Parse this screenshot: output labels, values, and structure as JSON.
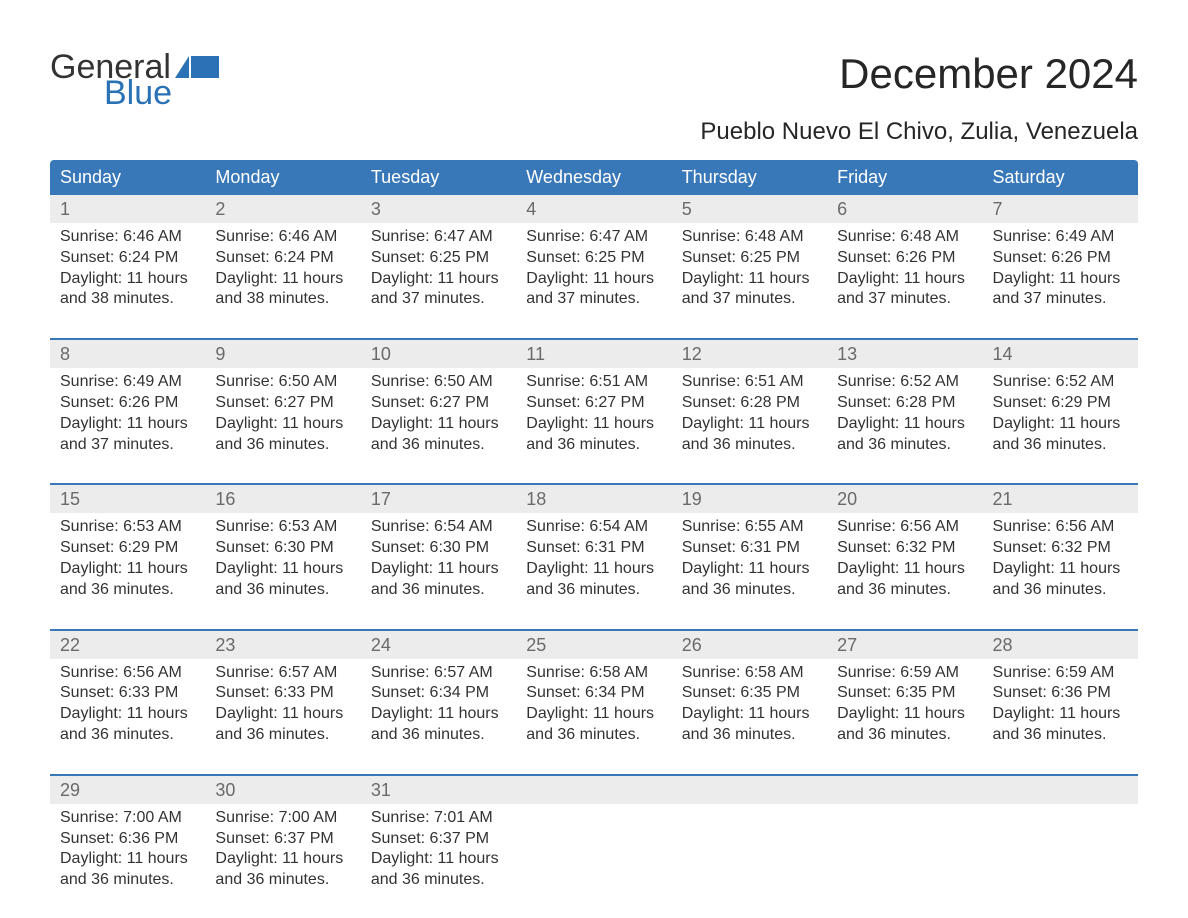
{
  "logo": {
    "text_general": "General",
    "text_blue": "Blue",
    "flag_color": "#2a72b5"
  },
  "title": "December 2024",
  "subtitle": "Pueblo Nuevo El Chivo, Zulia, Venezuela",
  "colors": {
    "header_bg": "#3878b8",
    "header_text": "#ffffff",
    "daynum_bg": "#ececec",
    "daynum_text": "#6a6a6a",
    "body_text": "#333333",
    "week_border": "#3878b8",
    "page_bg": "#ffffff"
  },
  "typography": {
    "title_fontsize": 42,
    "subtitle_fontsize": 24,
    "weekday_fontsize": 18,
    "daynum_fontsize": 18,
    "content_fontsize": 16
  },
  "weekdays": [
    "Sunday",
    "Monday",
    "Tuesday",
    "Wednesday",
    "Thursday",
    "Friday",
    "Saturday"
  ],
  "weeks": [
    {
      "days": [
        {
          "num": "1",
          "sunrise": "Sunrise: 6:46 AM",
          "sunset": "Sunset: 6:24 PM",
          "daylight1": "Daylight: 11 hours",
          "daylight2": "and 38 minutes."
        },
        {
          "num": "2",
          "sunrise": "Sunrise: 6:46 AM",
          "sunset": "Sunset: 6:24 PM",
          "daylight1": "Daylight: 11 hours",
          "daylight2": "and 38 minutes."
        },
        {
          "num": "3",
          "sunrise": "Sunrise: 6:47 AM",
          "sunset": "Sunset: 6:25 PM",
          "daylight1": "Daylight: 11 hours",
          "daylight2": "and 37 minutes."
        },
        {
          "num": "4",
          "sunrise": "Sunrise: 6:47 AM",
          "sunset": "Sunset: 6:25 PM",
          "daylight1": "Daylight: 11 hours",
          "daylight2": "and 37 minutes."
        },
        {
          "num": "5",
          "sunrise": "Sunrise: 6:48 AM",
          "sunset": "Sunset: 6:25 PM",
          "daylight1": "Daylight: 11 hours",
          "daylight2": "and 37 minutes."
        },
        {
          "num": "6",
          "sunrise": "Sunrise: 6:48 AM",
          "sunset": "Sunset: 6:26 PM",
          "daylight1": "Daylight: 11 hours",
          "daylight2": "and 37 minutes."
        },
        {
          "num": "7",
          "sunrise": "Sunrise: 6:49 AM",
          "sunset": "Sunset: 6:26 PM",
          "daylight1": "Daylight: 11 hours",
          "daylight2": "and 37 minutes."
        }
      ]
    },
    {
      "days": [
        {
          "num": "8",
          "sunrise": "Sunrise: 6:49 AM",
          "sunset": "Sunset: 6:26 PM",
          "daylight1": "Daylight: 11 hours",
          "daylight2": "and 37 minutes."
        },
        {
          "num": "9",
          "sunrise": "Sunrise: 6:50 AM",
          "sunset": "Sunset: 6:27 PM",
          "daylight1": "Daylight: 11 hours",
          "daylight2": "and 36 minutes."
        },
        {
          "num": "10",
          "sunrise": "Sunrise: 6:50 AM",
          "sunset": "Sunset: 6:27 PM",
          "daylight1": "Daylight: 11 hours",
          "daylight2": "and 36 minutes."
        },
        {
          "num": "11",
          "sunrise": "Sunrise: 6:51 AM",
          "sunset": "Sunset: 6:27 PM",
          "daylight1": "Daylight: 11 hours",
          "daylight2": "and 36 minutes."
        },
        {
          "num": "12",
          "sunrise": "Sunrise: 6:51 AM",
          "sunset": "Sunset: 6:28 PM",
          "daylight1": "Daylight: 11 hours",
          "daylight2": "and 36 minutes."
        },
        {
          "num": "13",
          "sunrise": "Sunrise: 6:52 AM",
          "sunset": "Sunset: 6:28 PM",
          "daylight1": "Daylight: 11 hours",
          "daylight2": "and 36 minutes."
        },
        {
          "num": "14",
          "sunrise": "Sunrise: 6:52 AM",
          "sunset": "Sunset: 6:29 PM",
          "daylight1": "Daylight: 11 hours",
          "daylight2": "and 36 minutes."
        }
      ]
    },
    {
      "days": [
        {
          "num": "15",
          "sunrise": "Sunrise: 6:53 AM",
          "sunset": "Sunset: 6:29 PM",
          "daylight1": "Daylight: 11 hours",
          "daylight2": "and 36 minutes."
        },
        {
          "num": "16",
          "sunrise": "Sunrise: 6:53 AM",
          "sunset": "Sunset: 6:30 PM",
          "daylight1": "Daylight: 11 hours",
          "daylight2": "and 36 minutes."
        },
        {
          "num": "17",
          "sunrise": "Sunrise: 6:54 AM",
          "sunset": "Sunset: 6:30 PM",
          "daylight1": "Daylight: 11 hours",
          "daylight2": "and 36 minutes."
        },
        {
          "num": "18",
          "sunrise": "Sunrise: 6:54 AM",
          "sunset": "Sunset: 6:31 PM",
          "daylight1": "Daylight: 11 hours",
          "daylight2": "and 36 minutes."
        },
        {
          "num": "19",
          "sunrise": "Sunrise: 6:55 AM",
          "sunset": "Sunset: 6:31 PM",
          "daylight1": "Daylight: 11 hours",
          "daylight2": "and 36 minutes."
        },
        {
          "num": "20",
          "sunrise": "Sunrise: 6:56 AM",
          "sunset": "Sunset: 6:32 PM",
          "daylight1": "Daylight: 11 hours",
          "daylight2": "and 36 minutes."
        },
        {
          "num": "21",
          "sunrise": "Sunrise: 6:56 AM",
          "sunset": "Sunset: 6:32 PM",
          "daylight1": "Daylight: 11 hours",
          "daylight2": "and 36 minutes."
        }
      ]
    },
    {
      "days": [
        {
          "num": "22",
          "sunrise": "Sunrise: 6:56 AM",
          "sunset": "Sunset: 6:33 PM",
          "daylight1": "Daylight: 11 hours",
          "daylight2": "and 36 minutes."
        },
        {
          "num": "23",
          "sunrise": "Sunrise: 6:57 AM",
          "sunset": "Sunset: 6:33 PM",
          "daylight1": "Daylight: 11 hours",
          "daylight2": "and 36 minutes."
        },
        {
          "num": "24",
          "sunrise": "Sunrise: 6:57 AM",
          "sunset": "Sunset: 6:34 PM",
          "daylight1": "Daylight: 11 hours",
          "daylight2": "and 36 minutes."
        },
        {
          "num": "25",
          "sunrise": "Sunrise: 6:58 AM",
          "sunset": "Sunset: 6:34 PM",
          "daylight1": "Daylight: 11 hours",
          "daylight2": "and 36 minutes."
        },
        {
          "num": "26",
          "sunrise": "Sunrise: 6:58 AM",
          "sunset": "Sunset: 6:35 PM",
          "daylight1": "Daylight: 11 hours",
          "daylight2": "and 36 minutes."
        },
        {
          "num": "27",
          "sunrise": "Sunrise: 6:59 AM",
          "sunset": "Sunset: 6:35 PM",
          "daylight1": "Daylight: 11 hours",
          "daylight2": "and 36 minutes."
        },
        {
          "num": "28",
          "sunrise": "Sunrise: 6:59 AM",
          "sunset": "Sunset: 6:36 PM",
          "daylight1": "Daylight: 11 hours",
          "daylight2": "and 36 minutes."
        }
      ]
    },
    {
      "days": [
        {
          "num": "29",
          "sunrise": "Sunrise: 7:00 AM",
          "sunset": "Sunset: 6:36 PM",
          "daylight1": "Daylight: 11 hours",
          "daylight2": "and 36 minutes."
        },
        {
          "num": "30",
          "sunrise": "Sunrise: 7:00 AM",
          "sunset": "Sunset: 6:37 PM",
          "daylight1": "Daylight: 11 hours",
          "daylight2": "and 36 minutes."
        },
        {
          "num": "31",
          "sunrise": "Sunrise: 7:01 AM",
          "sunset": "Sunset: 6:37 PM",
          "daylight1": "Daylight: 11 hours",
          "daylight2": "and 36 minutes."
        },
        {
          "num": "",
          "sunrise": "",
          "sunset": "",
          "daylight1": "",
          "daylight2": ""
        },
        {
          "num": "",
          "sunrise": "",
          "sunset": "",
          "daylight1": "",
          "daylight2": ""
        },
        {
          "num": "",
          "sunrise": "",
          "sunset": "",
          "daylight1": "",
          "daylight2": ""
        },
        {
          "num": "",
          "sunrise": "",
          "sunset": "",
          "daylight1": "",
          "daylight2": ""
        }
      ]
    }
  ]
}
